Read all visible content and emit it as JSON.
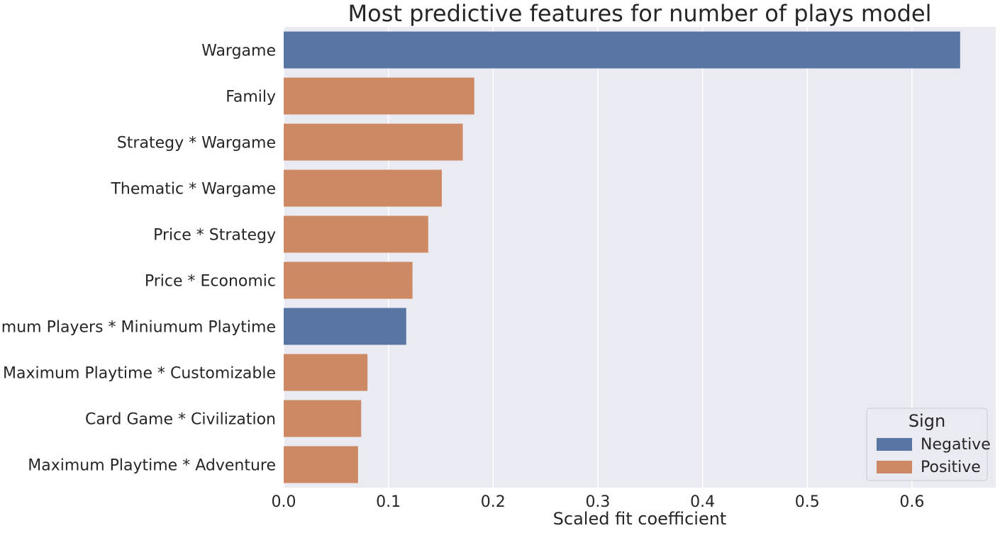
{
  "chart_data": {
    "type": "bar",
    "orientation": "horizontal",
    "title": "Most predictive features for number of plays model",
    "xlabel": "Scaled fit coefficient",
    "ylabel": "",
    "xlim": [
      0,
      0.68
    ],
    "xticks": [
      0.0,
      0.1,
      0.2,
      0.3,
      0.4,
      0.5,
      0.6
    ],
    "xtick_labels": [
      "0.0",
      "0.1",
      "0.2",
      "0.3",
      "0.4",
      "0.5",
      "0.6"
    ],
    "grid": true,
    "categories": [
      "Wargame",
      "Family",
      "Strategy * Wargame",
      "Thematic * Wargame",
      "Price * Strategy",
      "Price * Economic",
      "Minimum Players * Miniumum Playtime",
      "Maximum Playtime * Customizable",
      "Card Game * Civilization",
      "Maximum Playtime * Adventure"
    ],
    "values": [
      0.646,
      0.182,
      0.171,
      0.151,
      0.138,
      0.123,
      0.117,
      0.08,
      0.074,
      0.071
    ],
    "signs": [
      "Negative",
      "Positive",
      "Positive",
      "Positive",
      "Positive",
      "Positive",
      "Negative",
      "Positive",
      "Positive",
      "Positive"
    ],
    "legend": {
      "title": "Sign",
      "placement": "lower-right",
      "entries": [
        {
          "label": "Negative",
          "color": "#5875a4"
        },
        {
          "label": "Positive",
          "color": "#cc8963"
        }
      ]
    },
    "colors": {
      "Negative": "#5875a4",
      "Positive": "#cc8963",
      "plot_background": "#eaeaf2",
      "grid": "#ffffff"
    }
  }
}
